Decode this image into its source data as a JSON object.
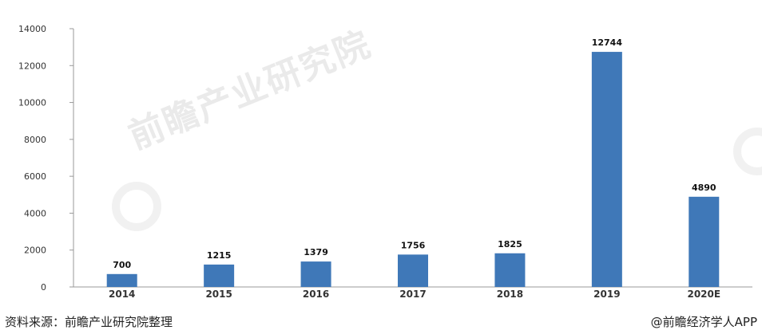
{
  "chart_data": {
    "type": "bar",
    "categories": [
      "2014",
      "2015",
      "2016",
      "2017",
      "2018",
      "2019",
      "2020E"
    ],
    "values": [
      700,
      1215,
      1379,
      1756,
      1825,
      12744,
      4890
    ],
    "data_labels": [
      "700",
      "1215",
      "1379",
      "1756",
      "1825",
      "12744",
      "4890"
    ],
    "ylim": [
      0,
      14000
    ],
    "yticks": [
      0,
      2000,
      4000,
      6000,
      8000,
      10000,
      12000,
      14000
    ],
    "ytick_labels": [
      "0",
      "2000",
      "4000",
      "6000",
      "8000",
      "10000",
      "12000",
      "14000"
    ],
    "bar_color": "#3f78b8",
    "grid": false,
    "legend": "none",
    "title": "",
    "xlabel": "",
    "ylabel": ""
  },
  "watermark": "前瞻产业研究院",
  "footer": {
    "source": "资料来源：前瞻产业研究院整理",
    "credit": "@前瞻经济学人APP"
  }
}
